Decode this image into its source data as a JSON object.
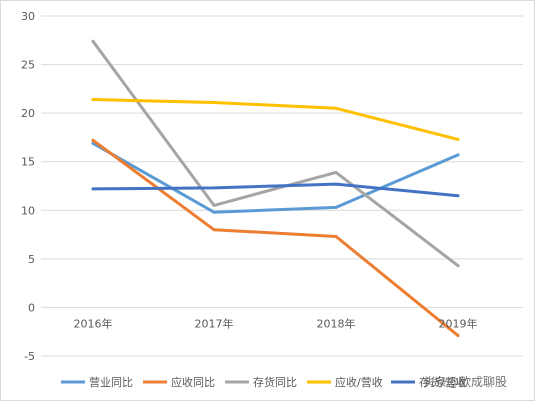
{
  "chart_data": {
    "type": "line",
    "categories": [
      "2016年",
      "2017年",
      "2018年",
      "2019年"
    ],
    "ylim": [
      -5,
      30
    ],
    "yticks": [
      "-5",
      "0",
      "5",
      "10",
      "15",
      "20",
      "25",
      "30"
    ],
    "grid": true,
    "legend_position": "bottom",
    "series": [
      {
        "name": "营业同比",
        "color": "#5B9BD5",
        "values": [
          16.9,
          9.8,
          10.3,
          15.7
        ]
      },
      {
        "name": "应收同比",
        "color": "#ED7D31",
        "values": [
          17.2,
          8.0,
          7.3,
          -2.9
        ]
      },
      {
        "name": "存货同比",
        "color": "#A5A5A5",
        "values": [
          27.4,
          10.5,
          13.9,
          4.3
        ]
      },
      {
        "name": "应收/营收",
        "color": "#FFC000",
        "values": [
          21.4,
          21.1,
          20.5,
          17.3
        ]
      },
      {
        "name": "存货/营收",
        "color": "#4472C4",
        "values": [
          12.2,
          12.3,
          12.7,
          11.5
        ]
      }
    ]
  },
  "watermark": "头条@欧成聊股"
}
